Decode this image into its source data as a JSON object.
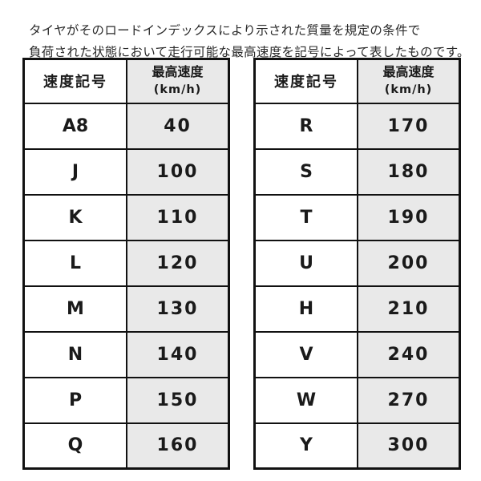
{
  "intro": {
    "line1": "タイヤがそのロードインデックスにより示された質量を規定の条件で",
    "line2": "負荷された状態において走行可能な最高速度を記号によって表したものです。"
  },
  "colors": {
    "cell_fill_gray": "#e9e9e9",
    "border_black": "#111111",
    "text_black": "#1a1a1a"
  },
  "tables": [
    {
      "name": "speed-symbol-table-left",
      "header": {
        "symbol": "速度記号",
        "speed_title": "最高速度",
        "speed_unit": "(km/h)"
      },
      "rows": [
        {
          "symbol": "A8",
          "speed": "40"
        },
        {
          "symbol": "J",
          "speed": "100"
        },
        {
          "symbol": "K",
          "speed": "110"
        },
        {
          "symbol": "L",
          "speed": "120"
        },
        {
          "symbol": "M",
          "speed": "130"
        },
        {
          "symbol": "N",
          "speed": "140"
        },
        {
          "symbol": "P",
          "speed": "150"
        },
        {
          "symbol": "Q",
          "speed": "160"
        }
      ]
    },
    {
      "name": "speed-symbol-table-right",
      "header": {
        "symbol": "速度記号",
        "speed_title": "最高速度",
        "speed_unit": "(km/h)"
      },
      "rows": [
        {
          "symbol": "R",
          "speed": "170"
        },
        {
          "symbol": "S",
          "speed": "180"
        },
        {
          "symbol": "T",
          "speed": "190"
        },
        {
          "symbol": "U",
          "speed": "200"
        },
        {
          "symbol": "H",
          "speed": "210"
        },
        {
          "symbol": "V",
          "speed": "240"
        },
        {
          "symbol": "W",
          "speed": "270"
        },
        {
          "symbol": "Y",
          "speed": "300"
        }
      ]
    }
  ]
}
